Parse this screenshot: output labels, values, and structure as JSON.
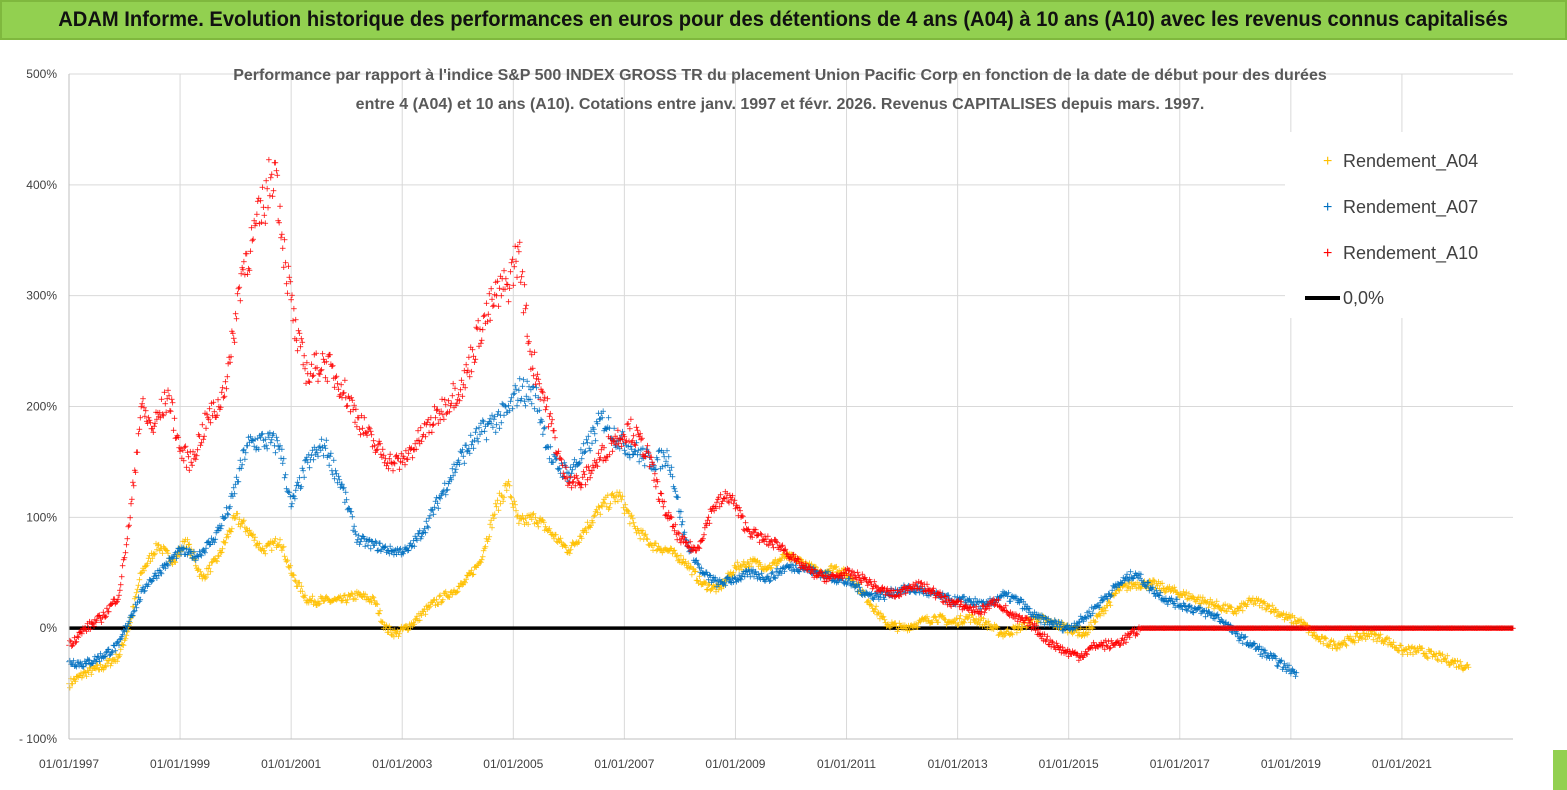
{
  "banner": {
    "title": "ADAM Informe. Evolution historique des performances en euros pour des détentions de 4 ans (A04) à 10 ans (A10) avec les revenus connus capitalisés"
  },
  "colors": {
    "banner_bg": "#92d050",
    "a04": "#ffc000",
    "a07": "#0070c0",
    "a10": "#ff0000",
    "zero": "#000000",
    "grid": "#d9d9d9"
  },
  "chart_data": {
    "type": "scatter",
    "title_lines": [
      "Performance par rapport à l'indice S&P 500 INDEX GROSS TR  du placement Union Pacific Corp en fonction de la date de début pour des durées",
      "entre 4 (A04) et 10 ans (A10).  Cotations entre janv. 1997 et févr. 2026. Revenus  CAPITALISES depuis mars. 1997."
    ],
    "ylim": [
      -100,
      500
    ],
    "yticks": [
      -100,
      0,
      100,
      200,
      300,
      400,
      500
    ],
    "ytick_labels": [
      "- 100%",
      "0%",
      "100%",
      "200%",
      "300%",
      "400%",
      "500%"
    ],
    "xlim": [
      1997.0,
      2023.0
    ],
    "xticks": [
      1997,
      1999,
      2001,
      2003,
      2005,
      2007,
      2009,
      2011,
      2013,
      2015,
      2017,
      2019,
      2021
    ],
    "xtick_labels": [
      "01/01/1997",
      "01/01/1999",
      "01/01/2001",
      "01/01/2003",
      "01/01/2005",
      "01/01/2007",
      "01/01/2009",
      "01/01/2011",
      "01/01/2013",
      "01/01/2015",
      "01/01/2017",
      "01/01/2019",
      "01/01/2021"
    ],
    "legend": [
      "Rendement_A04",
      "Rendement_A07",
      "Rendement_A10",
      "0,0%"
    ],
    "legend_position": "top-right",
    "series": [
      {
        "name": "Rendement_A04",
        "x": [
          1997.0,
          1997.3,
          1997.6,
          1997.9,
          1998.1,
          1998.3,
          1998.6,
          1998.9,
          1999.1,
          1999.4,
          1999.7,
          2000.0,
          2000.2,
          2000.5,
          2000.8,
          2001.0,
          2001.3,
          2001.6,
          2001.9,
          2002.2,
          2002.5,
          2002.7,
          2002.9,
          2003.2,
          2003.5,
          2003.8,
          2004.1,
          2004.4,
          2004.7,
          2004.9,
          2005.1,
          2005.4,
          2005.7,
          2006.0,
          2006.3,
          2006.6,
          2006.9,
          2007.2,
          2007.5,
          2007.8,
          2008.1,
          2008.4,
          2008.7,
          2009.0,
          2009.3,
          2009.6,
          2009.9,
          2010.2,
          2010.5,
          2010.8,
          2011.1,
          2011.4,
          2011.7,
          2012.0,
          2012.3,
          2012.6,
          2012.9,
          2013.2,
          2013.5,
          2013.8,
          2014.1,
          2014.4,
          2014.7,
          2015.0,
          2015.3,
          2015.6,
          2015.9,
          2016.2,
          2016.5,
          2016.8,
          2017.1,
          2017.4,
          2017.7,
          2018.0,
          2018.3,
          2018.6,
          2018.9,
          2019.2,
          2019.5,
          2019.8,
          2020.1,
          2020.4,
          2020.7,
          2021.0,
          2021.3,
          2021.6,
          2021.9,
          2022.2
        ],
        "y": [
          -50,
          -40,
          -35,
          -25,
          5,
          50,
          75,
          60,
          80,
          45,
          65,
          100,
          90,
          70,
          80,
          50,
          25,
          25,
          25,
          30,
          25,
          0,
          -5,
          5,
          20,
          30,
          40,
          60,
          110,
          130,
          95,
          100,
          85,
          70,
          90,
          110,
          120,
          90,
          75,
          70,
          60,
          40,
          35,
          55,
          60,
          55,
          65,
          60,
          50,
          55,
          45,
          25,
          5,
          0,
          5,
          10,
          5,
          10,
          5,
          -5,
          0,
          10,
          5,
          0,
          -5,
          15,
          35,
          40,
          40,
          35,
          30,
          25,
          20,
          15,
          25,
          20,
          10,
          5,
          -10,
          -15,
          -10,
          -5,
          -10,
          -20,
          -20,
          -25,
          -30,
          -35
        ]
      },
      {
        "name": "Rendement_A07",
        "x": [
          1997.0,
          1997.3,
          1997.6,
          1997.9,
          1998.1,
          1998.4,
          1998.7,
          1999.0,
          1999.3,
          1999.6,
          1999.9,
          2000.2,
          2000.5,
          2000.8,
          2001.0,
          2001.3,
          2001.6,
          2001.9,
          2002.2,
          2002.5,
          2002.8,
          2003.1,
          2003.4,
          2003.7,
          2004.0,
          2004.3,
          2004.6,
          2004.9,
          2005.1,
          2005.4,
          2005.7,
          2006.0,
          2006.3,
          2006.6,
          2006.9,
          2007.2,
          2007.5,
          2007.8,
          2008.1,
          2008.4,
          2008.7,
          2009.0,
          2009.3,
          2009.6,
          2009.9,
          2010.2,
          2010.5,
          2010.8,
          2011.1,
          2011.4,
          2011.7,
          2012.0,
          2012.3,
          2012.6,
          2012.9,
          2013.2,
          2013.5,
          2013.8,
          2014.1,
          2014.4,
          2014.7,
          2015.0,
          2015.3,
          2015.6,
          2015.9,
          2016.2,
          2016.5,
          2016.8,
          2017.1,
          2017.4,
          2017.7,
          2018.0,
          2018.3,
          2018.6,
          2018.9,
          2019.1
        ],
        "y": [
          -30,
          -32,
          -25,
          -15,
          10,
          40,
          55,
          70,
          65,
          80,
          110,
          165,
          170,
          165,
          110,
          150,
          165,
          130,
          80,
          75,
          70,
          70,
          90,
          120,
          150,
          170,
          185,
          195,
          215,
          210,
          150,
          140,
          160,
          190,
          170,
          160,
          150,
          155,
          80,
          50,
          40,
          45,
          50,
          45,
          55,
          55,
          50,
          45,
          40,
          30,
          30,
          35,
          35,
          30,
          25,
          25,
          20,
          30,
          25,
          10,
          5,
          0,
          10,
          25,
          40,
          50,
          35,
          25,
          20,
          15,
          10,
          -5,
          -15,
          -25,
          -35,
          -40
        ]
      },
      {
        "name": "Rendement_A10",
        "x": [
          1997.0,
          1997.3,
          1997.6,
          1997.9,
          1998.1,
          1998.3,
          1998.5,
          1998.8,
          1999.0,
          1999.2,
          1999.5,
          1999.7,
          1999.9,
          2000.1,
          2000.3,
          2000.5,
          2000.7,
          2000.9,
          2001.1,
          2001.3,
          2001.6,
          2001.9,
          2002.2,
          2002.5,
          2002.8,
          2003.0,
          2003.3,
          2003.6,
          2003.9,
          2004.1,
          2004.4,
          2004.7,
          2004.9,
          2005.1,
          2005.3,
          2005.6,
          2005.9,
          2006.2,
          2006.5,
          2006.8,
          2007.1,
          2007.4,
          2007.7,
          2008.0,
          2008.3,
          2008.6,
          2008.9,
          2009.2,
          2009.5,
          2009.8,
          2010.1,
          2010.4,
          2010.7,
          2011.0,
          2011.3,
          2011.6,
          2011.9,
          2012.2,
          2012.5,
          2012.8,
          2013.1,
          2013.4,
          2013.7,
          2014.0,
          2014.3,
          2014.6,
          2014.9,
          2015.2,
          2015.5,
          2015.8,
          2016.0,
          2016.3,
          2016.6,
          2017.0,
          2017.5,
          2018.0,
          2018.5,
          2019.0,
          2019.5,
          2020.0,
          2020.5,
          2021.0,
          2021.5,
          2022.0,
          2022.5,
          2023.0
        ],
        "y": [
          -15,
          0,
          10,
          30,
          100,
          200,
          180,
          210,
          160,
          150,
          190,
          200,
          240,
          320,
          350,
          380,
          420,
          330,
          260,
          230,
          240,
          220,
          190,
          165,
          150,
          150,
          170,
          190,
          210,
          220,
          270,
          300,
          310,
          340,
          250,
          200,
          140,
          130,
          150,
          170,
          180,
          160,
          110,
          80,
          70,
          110,
          120,
          90,
          80,
          75,
          60,
          50,
          45,
          50,
          45,
          35,
          30,
          40,
          35,
          25,
          20,
          15,
          25,
          10,
          5,
          -10,
          -20,
          -25,
          -15,
          -15,
          -10,
          0,
          0,
          0,
          0,
          0,
          0,
          0,
          0,
          0,
          0,
          0,
          0,
          0,
          0,
          0
        ]
      }
    ],
    "zero_line": {
      "name": "0,0%",
      "y": 0
    }
  }
}
